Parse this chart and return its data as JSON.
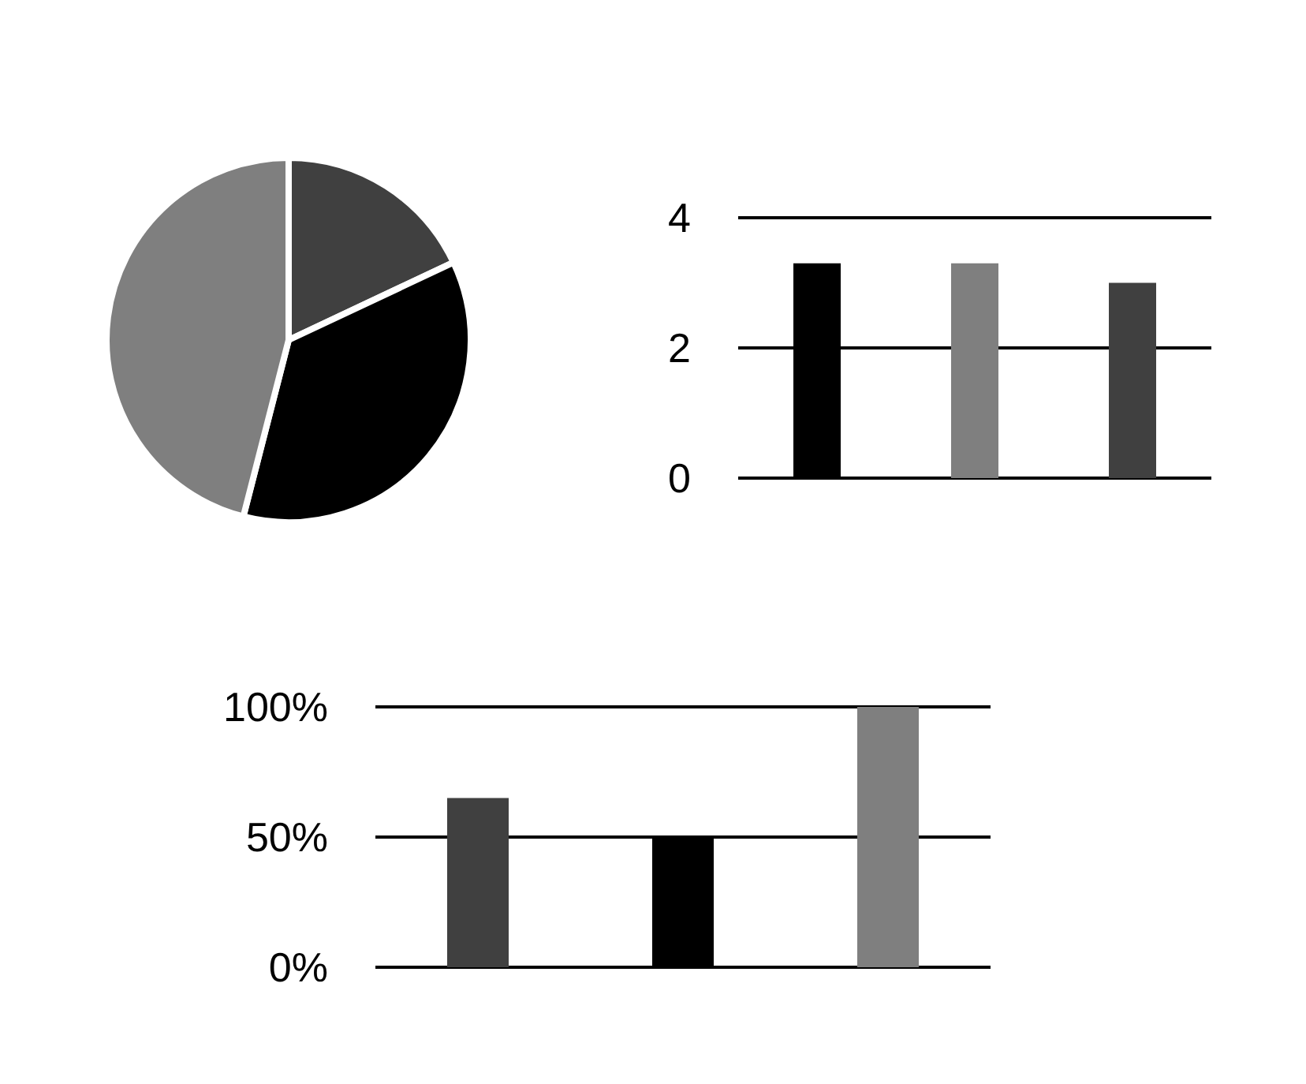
{
  "chart_data": [
    {
      "type": "pie",
      "categories": [
        null,
        null,
        null
      ],
      "values": [
        18,
        36,
        46
      ],
      "colors": [
        "#404040",
        "#000000",
        "#7f7f7f"
      ]
    },
    {
      "type": "bar",
      "categories": [
        null,
        null,
        null
      ],
      "values": [
        3.3,
        3.3,
        3.0
      ],
      "colors": [
        "#000000",
        "#7f7f7f",
        "#404040"
      ],
      "ylim": [
        0,
        4
      ],
      "yticks": [
        0,
        2,
        4
      ],
      "grid": "y",
      "tick_labels": "y"
    },
    {
      "type": "bar",
      "categories": [
        null,
        null,
        null
      ],
      "values": [
        65,
        50,
        100
      ],
      "colors": [
        "#404040",
        "#000000",
        "#7f7f7f"
      ],
      "ylim": [
        0,
        100
      ],
      "yticks": [
        {
          "value": 0,
          "label": "0%"
        },
        {
          "value": 50,
          "label": "50%"
        },
        {
          "value": 100,
          "label": "100%"
        }
      ],
      "grid": "y",
      "tick_labels": "y"
    }
  ]
}
